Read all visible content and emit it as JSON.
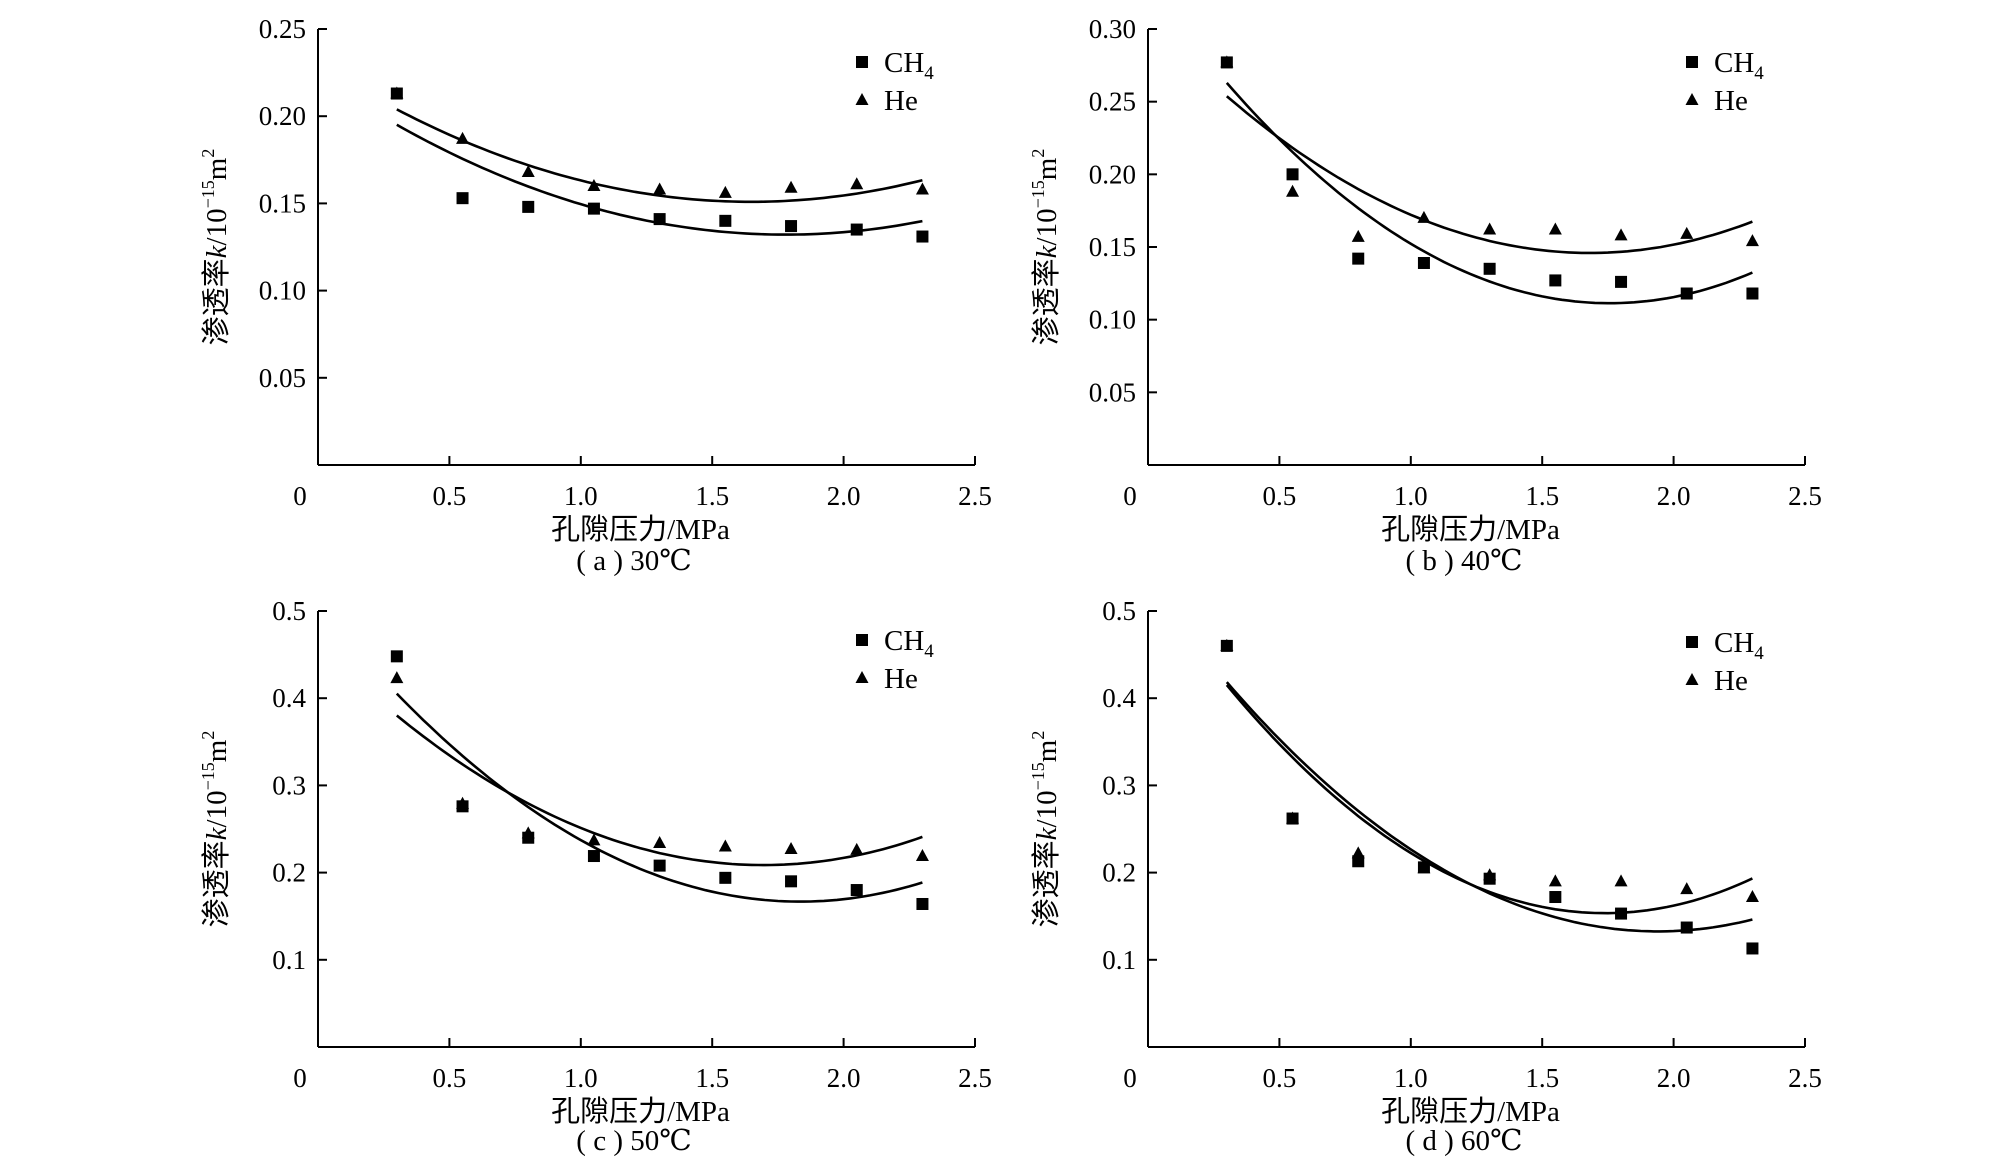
{
  "chart_data": [
    {
      "type": "scatter",
      "caption": "( a ) 30℃",
      "xlabel": "孔隙压力/MPa",
      "ylabel_cn": "渗透率",
      "ylabel_k": "k",
      "ylabel_unit": "/10",
      "ylabel_exp": "−15",
      "ylabel_m": "m",
      "ylabel_m_exp": "2",
      "xlim": [
        0,
        2.5
      ],
      "ylim": [
        0,
        0.25
      ],
      "xticks": [
        "0",
        "0.5",
        "1.0",
        "1.5",
        "2.0",
        "2.5"
      ],
      "xtick_values": [
        0,
        0.5,
        1.0,
        1.5,
        2.0,
        2.5
      ],
      "yticks": [
        "0.05",
        "0.10",
        "0.15",
        "0.20",
        "0.25"
      ],
      "ytick_values": [
        0.05,
        0.1,
        0.15,
        0.2,
        0.25
      ],
      "series": [
        {
          "name": "CH",
          "name_sub": "4",
          "marker": "square",
          "x": [
            0.3,
            0.55,
            0.8,
            1.05,
            1.3,
            1.55,
            1.8,
            2.05,
            2.3
          ],
          "y": [
            0.213,
            0.153,
            0.148,
            0.147,
            0.141,
            0.14,
            0.137,
            0.135,
            0.131
          ],
          "fit": [
            0.2232,
            -0.1024,
            0.02877
          ]
        },
        {
          "name": "He",
          "marker": "triangle",
          "x": [
            0.3,
            0.55,
            0.8,
            1.05,
            1.3,
            1.55,
            1.8,
            2.05,
            2.3
          ],
          "y": [
            0.213,
            0.187,
            0.168,
            0.16,
            0.158,
            0.156,
            0.159,
            0.161,
            0.158
          ],
          "fit": [
            0.2301,
            -0.0961,
            0.02916
          ]
        }
      ]
    },
    {
      "type": "scatter",
      "caption": "( b ) 40℃",
      "xlabel": "孔隙压力/MPa",
      "ylabel_cn": "渗透率",
      "ylabel_k": "k",
      "ylabel_unit": "/10",
      "ylabel_exp": "−15",
      "ylabel_m": "m",
      "ylabel_m_exp": "2",
      "xlim": [
        0,
        2.5
      ],
      "ylim": [
        0,
        0.3
      ],
      "xticks": [
        "0",
        "0.5",
        "1.0",
        "1.5",
        "2.0",
        "2.5"
      ],
      "xtick_values": [
        0,
        0.5,
        1.0,
        1.5,
        2.0,
        2.5
      ],
      "yticks": [
        "0.05",
        "0.10",
        "0.15",
        "0.20",
        "0.25",
        "0.30"
      ],
      "ytick_values": [
        0.05,
        0.1,
        0.15,
        0.2,
        0.25,
        0.3
      ],
      "series": [
        {
          "name": "CH",
          "name_sub": "4",
          "marker": "square",
          "x": [
            0.3,
            0.55,
            0.8,
            1.05,
            1.3,
            1.55,
            1.8,
            2.05,
            2.3
          ],
          "y": [
            0.277,
            0.2,
            0.142,
            0.139,
            0.135,
            0.127,
            0.126,
            0.118,
            0.118
          ],
          "fit": [
            0.3318,
            -0.251,
            0.07144
          ]
        },
        {
          "name": "He",
          "marker": "triangle",
          "x": [
            0.3,
            0.55,
            0.8,
            1.05,
            1.3,
            1.55,
            1.8,
            2.05,
            2.3
          ],
          "y": [
            0.277,
            0.188,
            0.157,
            0.17,
            0.162,
            0.162,
            0.158,
            0.159,
            0.154
          ],
          "fit": [
            0.3057,
            -0.19,
            0.05648
          ]
        }
      ]
    },
    {
      "type": "scatter",
      "caption": "( c ) 50℃",
      "xlabel": "孔隙压力/MPa",
      "ylabel_cn": "渗透率",
      "ylabel_k": "k",
      "ylabel_unit": "/10",
      "ylabel_exp": "−15",
      "ylabel_m": "m",
      "ylabel_m_exp": "2",
      "xlim": [
        0,
        2.5
      ],
      "ylim": [
        0,
        0.5
      ],
      "xticks": [
        "0",
        "0.5",
        "1.0",
        "1.5",
        "2.0",
        "2.5"
      ],
      "xtick_values": [
        0,
        0.5,
        1.0,
        1.5,
        2.0,
        2.5
      ],
      "yticks": [
        "0.1",
        "0.2",
        "0.3",
        "0.4",
        "0.5"
      ],
      "ytick_values": [
        0.1,
        0.2,
        0.3,
        0.4,
        0.5
      ],
      "series": [
        {
          "name": "CH",
          "name_sub": "4",
          "marker": "square",
          "x": [
            0.3,
            0.55,
            0.8,
            1.05,
            1.3,
            1.55,
            1.8,
            2.05,
            2.3
          ],
          "y": [
            0.448,
            0.276,
            0.24,
            0.219,
            0.208,
            0.194,
            0.19,
            0.18,
            0.164
          ],
          "fit": [
            0.5076,
            -0.3716,
            0.10128
          ]
        },
        {
          "name": "He",
          "marker": "triangle",
          "x": [
            0.3,
            0.55,
            0.8,
            1.05,
            1.3,
            1.55,
            1.8,
            2.05,
            2.3
          ],
          "y": [
            0.423,
            0.279,
            0.245,
            0.237,
            0.234,
            0.23,
            0.227,
            0.226,
            0.219
          ],
          "fit": [
            0.4618,
            -0.2987,
            0.08811
          ]
        }
      ]
    },
    {
      "type": "scatter",
      "caption": "( d ) 60℃",
      "xlabel": "孔隙压力/MPa",
      "ylabel_cn": "渗透率",
      "ylabel_k": "k",
      "ylabel_unit": "/10",
      "ylabel_exp": "−15",
      "ylabel_m": "m",
      "ylabel_m_exp": "2",
      "xlim": [
        0,
        2.5
      ],
      "ylim": [
        0,
        0.5
      ],
      "xticks": [
        "0",
        "0.5",
        "1.0",
        "1.5",
        "2.0",
        "2.5"
      ],
      "xtick_values": [
        0,
        0.5,
        1.0,
        1.5,
        2.0,
        2.5
      ],
      "yticks": [
        "0.1",
        "0.2",
        "0.3",
        "0.4",
        "0.5"
      ],
      "ytick_values": [
        0.1,
        0.2,
        0.3,
        0.4,
        0.5
      ],
      "series": [
        {
          "name": "CH",
          "name_sub": "4",
          "marker": "square",
          "x": [
            0.3,
            0.55,
            0.8,
            1.05,
            1.3,
            1.55,
            1.8,
            2.05,
            2.3
          ],
          "y": [
            0.46,
            0.262,
            0.213,
            0.206,
            0.193,
            0.172,
            0.153,
            0.137,
            0.113
          ],
          "fit": [
            0.5325,
            -0.4121,
            0.10616
          ]
        },
        {
          "name": "He",
          "marker": "triangle",
          "x": [
            0.3,
            0.55,
            0.8,
            1.05,
            1.3,
            1.55,
            1.8,
            2.05,
            2.3
          ],
          "y": [
            0.46,
            0.262,
            0.222,
            0.205,
            0.197,
            0.19,
            0.19,
            0.181,
            0.172
          ],
          "fit": [
            0.5356,
            -0.4396,
            0.12643
          ]
        }
      ]
    }
  ]
}
